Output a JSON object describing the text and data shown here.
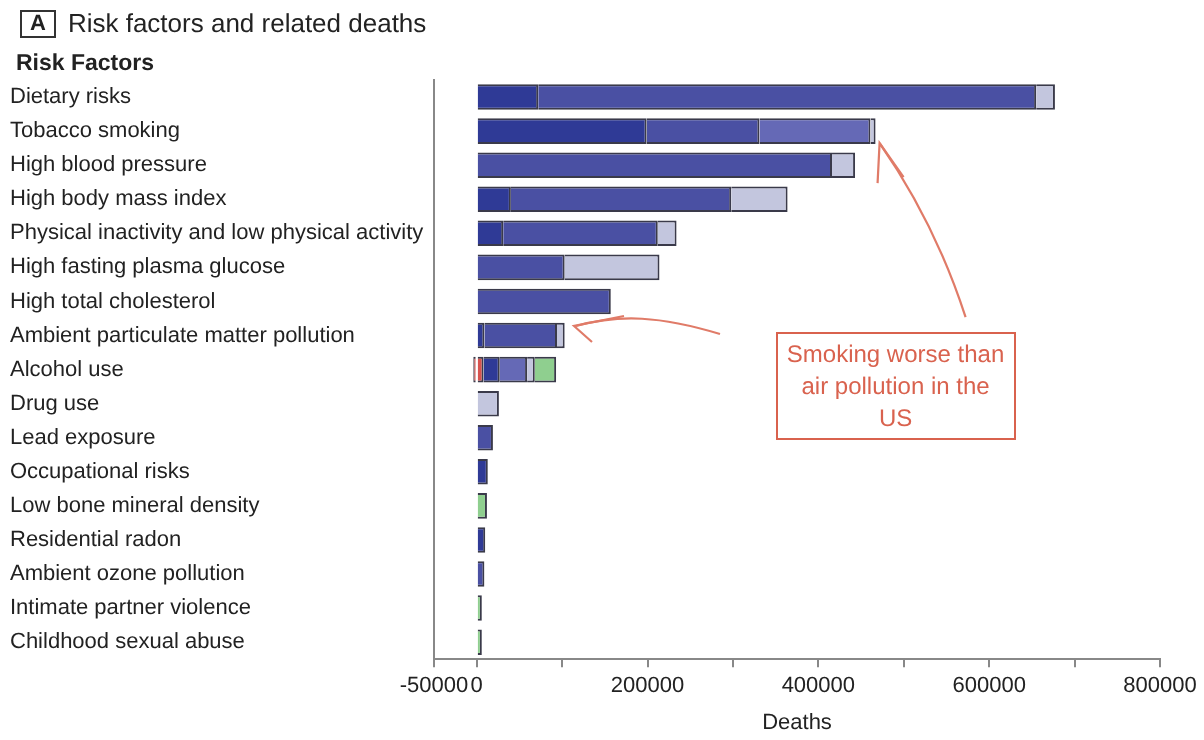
{
  "chart_data": {
    "type": "bar",
    "orientation": "horizontal",
    "stacked": true,
    "title": "Risk factors and related deaths",
    "ylabel": "Risk Factors",
    "xlabel": "Deaths",
    "annotations": [
      "A",
      {
        "text": "Smoking worse than air pollution in the US",
        "x": 467000,
        "y": "Tobacco smoking"
      }
    ],
    "categories": [
      "Dietary risks",
      "Tobacco smoking",
      "High blood pressure",
      "High body mass index",
      "Physical inactivity and low physical activity",
      "High fasting plasma glucose",
      "High total cholesterol",
      "Ambient particulate matter pollution",
      "Alcohol use",
      "Drug use",
      "Lead exposure",
      "Occupational risks",
      "Low bone mineral density",
      "Residential radon",
      "Ambient ozone pollution",
      "Intimate partner violence",
      "Childhood sexual abuse"
    ],
    "series": [
      {
        "color": "#d9534f",
        "values": [
          null,
          null,
          null,
          null,
          null,
          null,
          null,
          null,
          -4000,
          null,
          null,
          null,
          null,
          null,
          null,
          null,
          null
        ]
      },
      {
        "color": "#d9534f",
        "values": [
          null,
          null,
          null,
          null,
          null,
          null,
          null,
          null,
          8000,
          null,
          null,
          null,
          null,
          null,
          null,
          null,
          null
        ]
      },
      {
        "color": "#2f3a96",
        "values": [
          72000,
          199000,
          null,
          40000,
          31000,
          null,
          null,
          9000,
          19000,
          null,
          null,
          13000,
          null,
          10000,
          null,
          null,
          null
        ]
      },
      {
        "color": "#4a50a3",
        "values": [
          583000,
          132000,
          416000,
          258000,
          181000,
          103000,
          157000,
          85000,
          null,
          null,
          19000,
          null,
          null,
          null,
          9000,
          null,
          null
        ]
      },
      {
        "color": "#6569b6",
        "values": [
          null,
          130000,
          null,
          null,
          null,
          null,
          null,
          null,
          32000,
          null,
          null,
          null,
          null,
          null,
          null,
          null,
          null
        ]
      },
      {
        "color": "#c3c6de",
        "values": [
          22000,
          6000,
          27000,
          66000,
          22000,
          111000,
          null,
          9000,
          9000,
          26000,
          null,
          null,
          null,
          null,
          null,
          null,
          null
        ]
      },
      {
        "color": "#8fcf8f",
        "values": [
          null,
          null,
          null,
          null,
          null,
          null,
          null,
          null,
          25000,
          null,
          null,
          null,
          12000,
          null,
          null,
          6000,
          6000
        ]
      }
    ],
    "xlim": [
      -50000,
      800000
    ],
    "xticks": [
      -50000,
      0,
      {
        "value": 100000,
        "label": null
      },
      200000,
      {
        "value": 300000,
        "label": null
      },
      400000,
      {
        "value": 500000,
        "label": null
      },
      600000,
      {
        "value": 700000,
        "label": null
      },
      800000
    ]
  }
}
